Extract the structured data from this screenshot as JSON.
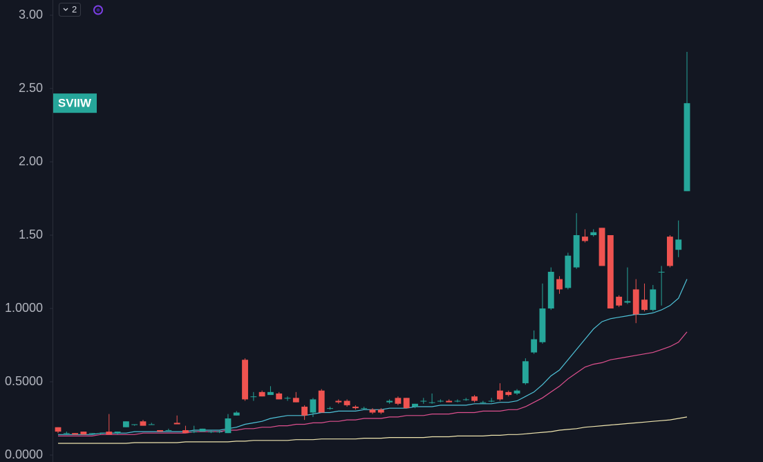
{
  "chart_data": {
    "type": "candlestick",
    "legend_count": "2",
    "symbol": "SVIIW",
    "up_color": "#26a69a",
    "down_color": "#ef5350",
    "ylim": [
      0,
      3.0
    ],
    "yticks": [
      {
        "value": 0,
        "label": "0.0000"
      },
      {
        "value": 0.5,
        "label": "0.5000"
      },
      {
        "value": 1.0,
        "label": "1.0000"
      },
      {
        "value": 1.5,
        "label": "1.50"
      },
      {
        "value": 2.0,
        "label": "2.00"
      },
      {
        "value": 2.5,
        "label": "2.50"
      },
      {
        "value": 3.0,
        "label": "3.00"
      }
    ],
    "open": [
      0.19,
      0.15,
      0.15,
      0.16,
      0.15,
      0.15,
      0.16,
      0.15,
      0.19,
      0.21,
      0.23,
      0.21,
      0.17,
      0.17,
      0.22,
      0.17,
      0.16,
      0.16,
      0.16,
      0.16,
      0.15,
      0.27,
      0.65,
      0.4,
      0.43,
      0.41,
      0.42,
      0.39,
      0.39,
      0.33,
      0.29,
      0.44,
      0.32,
      0.37,
      0.37,
      0.33,
      0.32,
      0.31,
      0.31,
      0.36,
      0.39,
      0.39,
      0.33,
      0.37,
      0.36,
      0.37,
      0.37,
      0.37,
      0.38,
      0.4,
      0.36,
      0.37,
      0.44,
      0.43,
      0.42,
      0.49,
      0.7,
      0.77,
      1.0,
      1.2,
      1.14,
      1.28,
      1.49,
      1.5,
      1.55,
      1.5,
      1.08,
      1.04,
      1.13,
      1.06,
      0.99,
      1.25,
      1.49,
      1.4,
      1.8
    ],
    "high": [
      0.19,
      0.16,
      0.15,
      0.16,
      0.15,
      0.15,
      0.28,
      0.16,
      0.23,
      0.21,
      0.24,
      0.22,
      0.17,
      0.18,
      0.27,
      0.2,
      0.2,
      0.18,
      0.17,
      0.17,
      0.28,
      0.3,
      0.66,
      0.43,
      0.44,
      0.47,
      0.43,
      0.4,
      0.43,
      0.34,
      0.39,
      0.45,
      0.33,
      0.38,
      0.38,
      0.34,
      0.33,
      0.32,
      0.32,
      0.38,
      0.4,
      0.39,
      0.35,
      0.39,
      0.42,
      0.38,
      0.38,
      0.38,
      0.39,
      0.41,
      0.37,
      0.39,
      0.49,
      0.44,
      0.45,
      0.66,
      0.85,
      1.17,
      1.28,
      1.22,
      1.38,
      1.65,
      1.54,
      1.54,
      1.55,
      1.5,
      1.09,
      1.28,
      1.2,
      1.17,
      1.16,
      1.29,
      1.5,
      1.6,
      2.75
    ],
    "low": [
      0.15,
      0.14,
      0.14,
      0.14,
      0.14,
      0.14,
      0.14,
      0.14,
      0.19,
      0.2,
      0.2,
      0.21,
      0.16,
      0.17,
      0.21,
      0.15,
      0.15,
      0.16,
      0.15,
      0.15,
      0.15,
      0.27,
      0.37,
      0.37,
      0.4,
      0.41,
      0.38,
      0.37,
      0.36,
      0.24,
      0.26,
      0.29,
      0.31,
      0.35,
      0.33,
      0.31,
      0.31,
      0.28,
      0.28,
      0.35,
      0.34,
      0.32,
      0.32,
      0.35,
      0.35,
      0.36,
      0.36,
      0.36,
      0.37,
      0.36,
      0.35,
      0.36,
      0.37,
      0.4,
      0.41,
      0.48,
      0.69,
      0.76,
      0.99,
      1.1,
      1.13,
      1.27,
      1.45,
      1.49,
      1.29,
      1.0,
      1.01,
      1.03,
      0.9,
      0.98,
      0.98,
      1.02,
      1.28,
      1.35,
      1.8
    ],
    "close": [
      0.16,
      0.15,
      0.14,
      0.14,
      0.15,
      0.15,
      0.14,
      0.16,
      0.23,
      0.21,
      0.2,
      0.21,
      0.16,
      0.17,
      0.21,
      0.15,
      0.16,
      0.18,
      0.16,
      0.16,
      0.25,
      0.29,
      0.38,
      0.4,
      0.4,
      0.43,
      0.38,
      0.39,
      0.36,
      0.27,
      0.38,
      0.29,
      0.32,
      0.36,
      0.34,
      0.32,
      0.32,
      0.29,
      0.29,
      0.37,
      0.35,
      0.32,
      0.35,
      0.37,
      0.36,
      0.37,
      0.36,
      0.37,
      0.38,
      0.37,
      0.36,
      0.37,
      0.38,
      0.41,
      0.44,
      0.64,
      0.79,
      1.0,
      1.25,
      1.13,
      1.36,
      1.5,
      1.46,
      1.52,
      1.29,
      1.0,
      1.02,
      1.05,
      0.96,
      0.99,
      1.13,
      1.25,
      1.29,
      1.47,
      2.4
    ],
    "moving_averages": [
      {
        "color": "#4fc3d9",
        "values": [
          0.14,
          0.14,
          0.14,
          0.14,
          0.14,
          0.15,
          0.15,
          0.15,
          0.15,
          0.16,
          0.16,
          0.16,
          0.16,
          0.16,
          0.16,
          0.16,
          0.17,
          0.17,
          0.17,
          0.17,
          0.18,
          0.19,
          0.21,
          0.22,
          0.23,
          0.25,
          0.26,
          0.27,
          0.27,
          0.27,
          0.28,
          0.29,
          0.29,
          0.3,
          0.3,
          0.3,
          0.31,
          0.31,
          0.31,
          0.32,
          0.32,
          0.32,
          0.33,
          0.33,
          0.33,
          0.34,
          0.34,
          0.34,
          0.34,
          0.35,
          0.35,
          0.35,
          0.36,
          0.36,
          0.37,
          0.4,
          0.43,
          0.48,
          0.54,
          0.58,
          0.65,
          0.72,
          0.79,
          0.86,
          0.91,
          0.93,
          0.94,
          0.95,
          0.96,
          0.96,
          0.97,
          0.99,
          1.02,
          1.07,
          1.2
        ]
      },
      {
        "color": "#e0508f",
        "values": [
          0.13,
          0.13,
          0.13,
          0.13,
          0.13,
          0.14,
          0.14,
          0.14,
          0.14,
          0.14,
          0.15,
          0.15,
          0.15,
          0.15,
          0.15,
          0.15,
          0.16,
          0.16,
          0.16,
          0.16,
          0.17,
          0.17,
          0.18,
          0.18,
          0.19,
          0.19,
          0.2,
          0.2,
          0.21,
          0.21,
          0.22,
          0.22,
          0.23,
          0.23,
          0.24,
          0.24,
          0.25,
          0.25,
          0.25,
          0.26,
          0.26,
          0.27,
          0.27,
          0.27,
          0.28,
          0.28,
          0.28,
          0.29,
          0.29,
          0.29,
          0.3,
          0.3,
          0.3,
          0.31,
          0.31,
          0.33,
          0.36,
          0.39,
          0.43,
          0.47,
          0.52,
          0.56,
          0.6,
          0.62,
          0.63,
          0.65,
          0.66,
          0.67,
          0.68,
          0.69,
          0.7,
          0.72,
          0.74,
          0.77,
          0.84
        ]
      },
      {
        "color": "#f0e6b0",
        "values": [
          0.08,
          0.08,
          0.08,
          0.08,
          0.08,
          0.08,
          0.08,
          0.08,
          0.08,
          0.085,
          0.085,
          0.085,
          0.085,
          0.085,
          0.085,
          0.09,
          0.09,
          0.09,
          0.09,
          0.09,
          0.09,
          0.095,
          0.095,
          0.1,
          0.1,
          0.1,
          0.1,
          0.1,
          0.105,
          0.105,
          0.105,
          0.11,
          0.11,
          0.11,
          0.11,
          0.11,
          0.115,
          0.115,
          0.115,
          0.12,
          0.12,
          0.12,
          0.12,
          0.12,
          0.125,
          0.125,
          0.125,
          0.13,
          0.13,
          0.13,
          0.13,
          0.135,
          0.135,
          0.14,
          0.14,
          0.145,
          0.15,
          0.155,
          0.16,
          0.17,
          0.175,
          0.18,
          0.19,
          0.195,
          0.2,
          0.205,
          0.21,
          0.215,
          0.22,
          0.225,
          0.23,
          0.235,
          0.24,
          0.25,
          0.26
        ]
      }
    ]
  }
}
